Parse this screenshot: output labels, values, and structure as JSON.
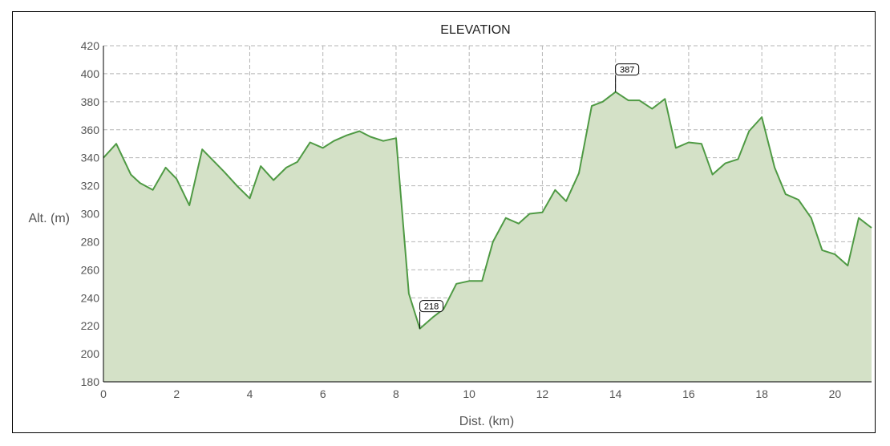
{
  "chart_data": {
    "type": "area",
    "title": "ELEVATION",
    "xlabel": "Dist. (km)",
    "ylabel": "Alt. (m)",
    "xlim": [
      0,
      21
    ],
    "ylim": [
      180,
      420
    ],
    "xticks": [
      0,
      2,
      4,
      6,
      8,
      10,
      12,
      14,
      16,
      18,
      20
    ],
    "yticks": [
      180,
      200,
      220,
      240,
      260,
      280,
      300,
      320,
      340,
      360,
      380,
      400,
      420
    ],
    "grid": true,
    "series": [
      {
        "color": "#4f9a44",
        "fill": "#d4e1c7",
        "x": [
          0,
          0.35,
          0.75,
          1.0,
          1.35,
          1.7,
          2.0,
          2.35,
          2.7,
          3.0,
          3.3,
          3.65,
          4.0,
          4.3,
          4.65,
          5.0,
          5.3,
          5.65,
          6.0,
          6.3,
          6.65,
          7.0,
          7.3,
          7.65,
          8.0,
          8.35,
          8.65,
          9.0,
          9.3,
          9.65,
          10.0,
          10.35,
          10.65,
          11.0,
          11.35,
          11.65,
          12.0,
          12.35,
          12.65,
          13.0,
          13.35,
          13.65,
          14.0,
          14.35,
          14.65,
          15.0,
          15.35,
          15.65,
          16.0,
          16.35,
          16.65,
          17.0,
          17.35,
          17.65,
          18.0,
          18.35,
          18.65,
          19.0,
          19.35,
          19.65,
          20.0,
          20.35,
          20.65,
          21.0
        ],
        "y": [
          340,
          350,
          328,
          322,
          317,
          333,
          325,
          306,
          346,
          338,
          330,
          320,
          311,
          334,
          324,
          333,
          337,
          351,
          347,
          352,
          356,
          359,
          355,
          352,
          354,
          243,
          218,
          226,
          232,
          250,
          252,
          252,
          280,
          297,
          293,
          300,
          301,
          317,
          309,
          329,
          377,
          380,
          387,
          381,
          381,
          375,
          382,
          347,
          351,
          350,
          328,
          336,
          339,
          359,
          369,
          333,
          314,
          310,
          297,
          274,
          271,
          263,
          297,
          290
        ]
      }
    ],
    "annotations": [
      {
        "x": 8.65,
        "y": 218,
        "label": "218"
      },
      {
        "x": 14.0,
        "y": 387,
        "label": "387"
      }
    ]
  }
}
